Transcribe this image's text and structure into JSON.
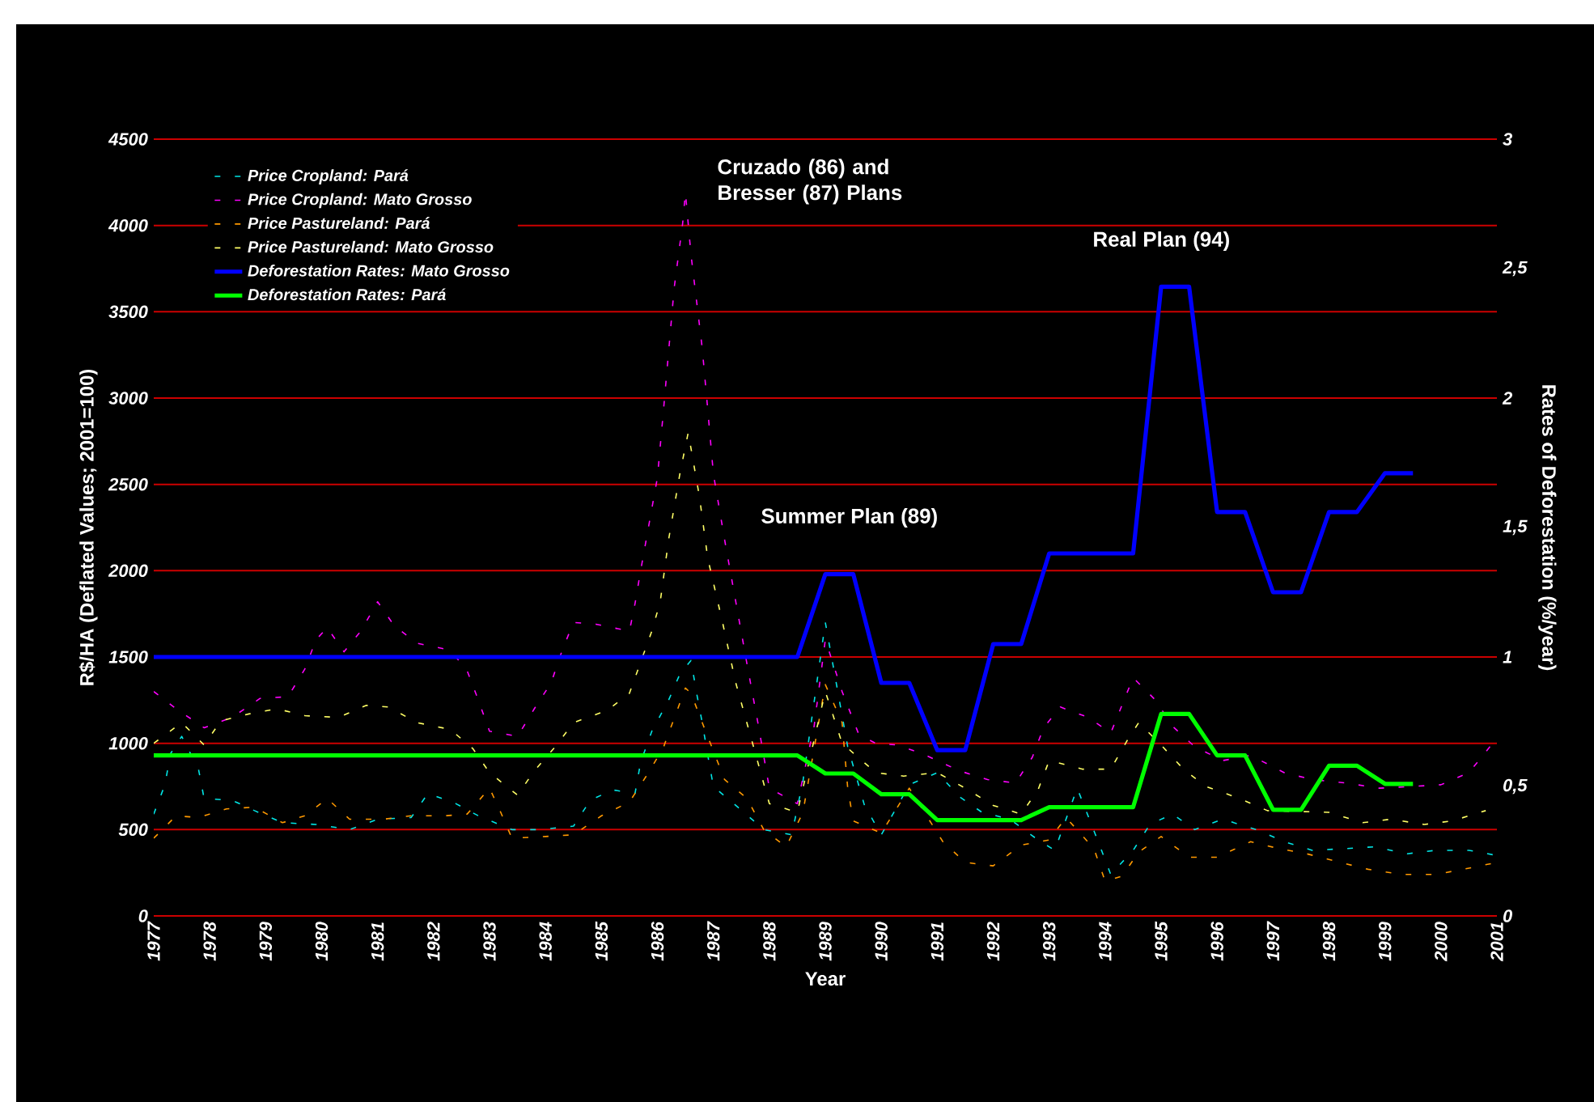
{
  "chart_data": {
    "type": "line",
    "xlabel": "Year",
    "ylabel": "R$/HA (Deflated Values; 2001=100)",
    "y2label": "Rates of Deforestation (%/year)",
    "annotations": [
      "Cruzado (86) and Bresser (87) Plans",
      "Summer Plan (89)",
      "Real Plan (94)"
    ],
    "xlim": [
      1977,
      2001
    ],
    "xticks": [
      1977,
      1978,
      1979,
      1980,
      1981,
      1982,
      1983,
      1984,
      1985,
      1986,
      1987,
      1988,
      1989,
      1990,
      1991,
      1992,
      1993,
      1994,
      1995,
      1996,
      1997,
      1998,
      1999,
      2000,
      2001
    ],
    "ylim": [
      0,
      4500
    ],
    "yticks": [
      0,
      500,
      1000,
      1500,
      2000,
      2500,
      3000,
      3500,
      4000,
      4500
    ],
    "y2lim": [
      0,
      3
    ],
    "y2ticks": [
      0,
      {
        "value": 0.5,
        "label": "0,5"
      },
      1,
      {
        "value": 1.5,
        "label": "1,5"
      },
      2,
      {
        "value": 2.5,
        "label": "2,5"
      },
      3
    ],
    "grid": "y",
    "legend": "top left",
    "series": [
      {
        "name": "Price Cropland: Pará",
        "color": "#00e5e5",
        "line_style": "dashed",
        "axis": "y",
        "x": [
          1977.0,
          1977.2,
          1977.3,
          1977.5,
          1977.8,
          1977.9,
          1978.4,
          1978.8,
          1979.3,
          1979.9,
          1980.5,
          1981.0,
          1981.6,
          1981.9,
          1982.4,
          1982.8,
          1983.4,
          1983.9,
          1984.5,
          1984.8,
          1985.2,
          1985.6,
          1985.7,
          1985.9,
          1986.2,
          1986.4,
          1986.6,
          1986.7,
          1986.8,
          1986.9,
          1987.0,
          1987.4,
          1987.9,
          1988.4,
          1988.6,
          1989.0,
          1989.4,
          1989.7,
          1990.0,
          1990.5,
          1991.0,
          1991.4,
          1991.8,
          1992.3,
          1992.8,
          1993.1,
          1993.5,
          1993.9,
          1994.1,
          1994.5,
          1994.8,
          1995.2,
          1995.6,
          1996.1,
          1996.7,
          1997.2,
          1997.7,
          1998.3,
          1998.8,
          1999.4,
          1999.9,
          2000.5,
          2001.0
        ],
        "values": [
          590,
          760,
          940,
          1040,
          850,
          680,
          670,
          610,
          540,
          530,
          500,
          560,
          570,
          710,
          650,
          580,
          500,
          500,
          520,
          670,
          730,
          710,
          890,
          1070,
          1250,
          1400,
          1480,
          1290,
          1120,
          930,
          750,
          640,
          500,
          470,
          780,
          1700,
          980,
          640,
          470,
          760,
          830,
          690,
          600,
          560,
          440,
          380,
          740,
          410,
          240,
          380,
          530,
          590,
          500,
          560,
          500,
          430,
          380,
          390,
          400,
          360,
          380,
          380,
          350
        ]
      },
      {
        "name": "Price Cropland: Mato Grosso",
        "color": "#ff00ff",
        "line_style": "dashed",
        "axis": "y",
        "x": [
          1977.0,
          1977.4,
          1977.9,
          1978.4,
          1978.9,
          1979.4,
          1979.7,
          1979.9,
          1980.1,
          1980.4,
          1980.7,
          1981.0,
          1981.3,
          1981.7,
          1982.3,
          1982.6,
          1982.8,
          1983.0,
          1983.5,
          1983.8,
          1984.1,
          1984.3,
          1984.5,
          1984.9,
          1985.5,
          1985.6,
          1985.7,
          1985.8,
          1986.0,
          1986.1,
          1986.2,
          1986.3,
          1986.45,
          1986.5,
          1986.6,
          1986.8,
          1986.9,
          1987.0,
          1987.2,
          1987.4,
          1987.6,
          1987.8,
          1988.0,
          1988.5,
          1988.8,
          1989.0,
          1989.3,
          1989.6,
          1989.9,
          1990.3,
          1990.8,
          1991.4,
          1991.9,
          1992.4,
          1992.7,
          1992.9,
          1993.2,
          1993.7,
          1994.1,
          1994.3,
          1994.5,
          1994.9,
          1995.2,
          1995.6,
          1996.1,
          1996.6,
          1997.2,
          1997.7,
          1998.3,
          1998.9,
          1999.5,
          2000.0,
          2000.5,
          2000.9
        ],
        "values": [
          1300,
          1200,
          1090,
          1150,
          1260,
          1270,
          1430,
          1600,
          1670,
          1530,
          1650,
          1820,
          1680,
          1580,
          1540,
          1420,
          1250,
          1070,
          1040,
          1200,
          1350,
          1540,
          1700,
          1690,
          1650,
          1810,
          2000,
          2180,
          2540,
          2900,
          3270,
          3640,
          4010,
          4190,
          3830,
          3290,
          2930,
          2560,
          2180,
          1820,
          1460,
          1110,
          740,
          650,
          1100,
          1600,
          1300,
          1050,
          1000,
          990,
          930,
          840,
          790,
          770,
          920,
          1090,
          1210,
          1150,
          1060,
          1220,
          1380,
          1250,
          1100,
          980,
          900,
          930,
          830,
          790,
          770,
          740,
          750,
          760,
          830,
          990
        ]
      },
      {
        "name": "Price Pastureland: Pará",
        "color": "#ff9900",
        "line_style": "dashed",
        "axis": "y",
        "x": [
          1977.0,
          1977.4,
          1977.8,
          1978.3,
          1978.8,
          1979.3,
          1979.7,
          1980.1,
          1980.5,
          1981.1,
          1981.6,
          1982.2,
          1982.6,
          1983.0,
          1983.2,
          1983.4,
          1984.0,
          1984.5,
          1985.0,
          1985.5,
          1985.8,
          1986.1,
          1986.5,
          1986.6,
          1986.8,
          1987.2,
          1987.6,
          1987.9,
          1988.3,
          1988.6,
          1989.0,
          1989.3,
          1989.4,
          1989.5,
          1990.0,
          1990.5,
          1991.1,
          1991.5,
          1992.0,
          1992.5,
          1993.0,
          1993.3,
          1993.8,
          1994.0,
          1994.3,
          1994.6,
          1995.0,
          1995.5,
          1996.0,
          1996.6,
          1997.1,
          1997.6,
          1998.2,
          1998.7,
          1999.3,
          1999.9,
          2000.4,
          2001.0
        ],
        "values": [
          450,
          580,
          570,
          620,
          630,
          540,
          580,
          680,
          560,
          560,
          580,
          580,
          590,
          740,
          600,
          450,
          460,
          470,
          580,
          660,
          810,
          970,
          1320,
          1290,
          1120,
          790,
          680,
          500,
          400,
          600,
          1340,
          1120,
          740,
          550,
          480,
          740,
          430,
          310,
          290,
          410,
          440,
          570,
          390,
          200,
          230,
          370,
          460,
          340,
          340,
          430,
          390,
          360,
          310,
          270,
          240,
          240,
          270,
          310
        ]
      },
      {
        "name": "Price Pastureland: Mato Grosso",
        "color": "#ffff66",
        "line_style": "dashed",
        "axis": "y",
        "x": [
          1977.0,
          1977.5,
          1977.9,
          1978.2,
          1978.7,
          1979.2,
          1979.7,
          1980.3,
          1980.8,
          1981.2,
          1981.7,
          1982.3,
          1982.7,
          1983.0,
          1983.5,
          1983.8,
          1984.2,
          1984.5,
          1985.1,
          1985.5,
          1985.7,
          1985.9,
          1986.05,
          1986.2,
          1986.4,
          1986.55,
          1986.75,
          1986.9,
          1987.15,
          1987.4,
          1987.7,
          1988.0,
          1988.5,
          1989.0,
          1989.3,
          1989.9,
          1990.4,
          1991.0,
          1991.5,
          1992.0,
          1992.5,
          1992.8,
          1993.0,
          1993.6,
          1994.1,
          1994.4,
          1994.6,
          1995.0,
          1995.4,
          1995.8,
          1996.4,
          1996.9,
          1998.0,
          1998.6,
          1999.1,
          1999.7,
          2000.2,
          2000.8
        ],
        "values": [
          1000,
          1120,
          990,
          1130,
          1170,
          1200,
          1160,
          1150,
          1220,
          1210,
          1120,
          1080,
          970,
          830,
          700,
          840,
          990,
          1120,
          1190,
          1290,
          1470,
          1650,
          1820,
          2180,
          2560,
          2800,
          2430,
          2070,
          1720,
          1350,
          1000,
          650,
          600,
          1300,
          1000,
          830,
          810,
          830,
          740,
          640,
          590,
          730,
          900,
          850,
          850,
          1020,
          1120,
          990,
          850,
          750,
          680,
          610,
          600,
          540,
          560,
          530,
          550,
          610
        ]
      },
      {
        "name": "Deforestation Rates: Mato Grosso",
        "color": "#0000ff",
        "line_style": "solid",
        "axis": "y2",
        "x": [
          1977,
          1988.5,
          1989,
          1989.5,
          1990,
          1990.5,
          1991,
          1991.5,
          1992,
          1992.5,
          1993,
          1994.5,
          1995,
          1995.5,
          1996,
          1996.5,
          1997,
          1997.5,
          1998,
          1998.5,
          1999,
          1999.5
        ],
        "values": [
          1,
          1,
          1.32,
          1.32,
          0.9,
          0.9,
          0.64,
          0.64,
          1.05,
          1.05,
          1.4,
          1.4,
          2.43,
          2.43,
          1.56,
          1.56,
          1.25,
          1.25,
          1.56,
          1.56,
          1.71,
          1.71
        ]
      },
      {
        "name": "Deforestation Rates: Pará",
        "color": "#00ff00",
        "line_style": "solid",
        "axis": "y2",
        "x": [
          1977,
          1988.5,
          1989,
          1989.5,
          1990,
          1990.5,
          1991,
          1992.5,
          1993,
          1994.5,
          1995,
          1995.5,
          1996,
          1996.5,
          1997,
          1997.5,
          1998,
          1998.5,
          1999,
          1999.5
        ],
        "values": [
          0.62,
          0.62,
          0.55,
          0.55,
          0.47,
          0.47,
          0.37,
          0.37,
          0.42,
          0.42,
          0.78,
          0.78,
          0.62,
          0.62,
          0.41,
          0.41,
          0.58,
          0.58,
          0.51,
          0.51
        ]
      }
    ]
  }
}
